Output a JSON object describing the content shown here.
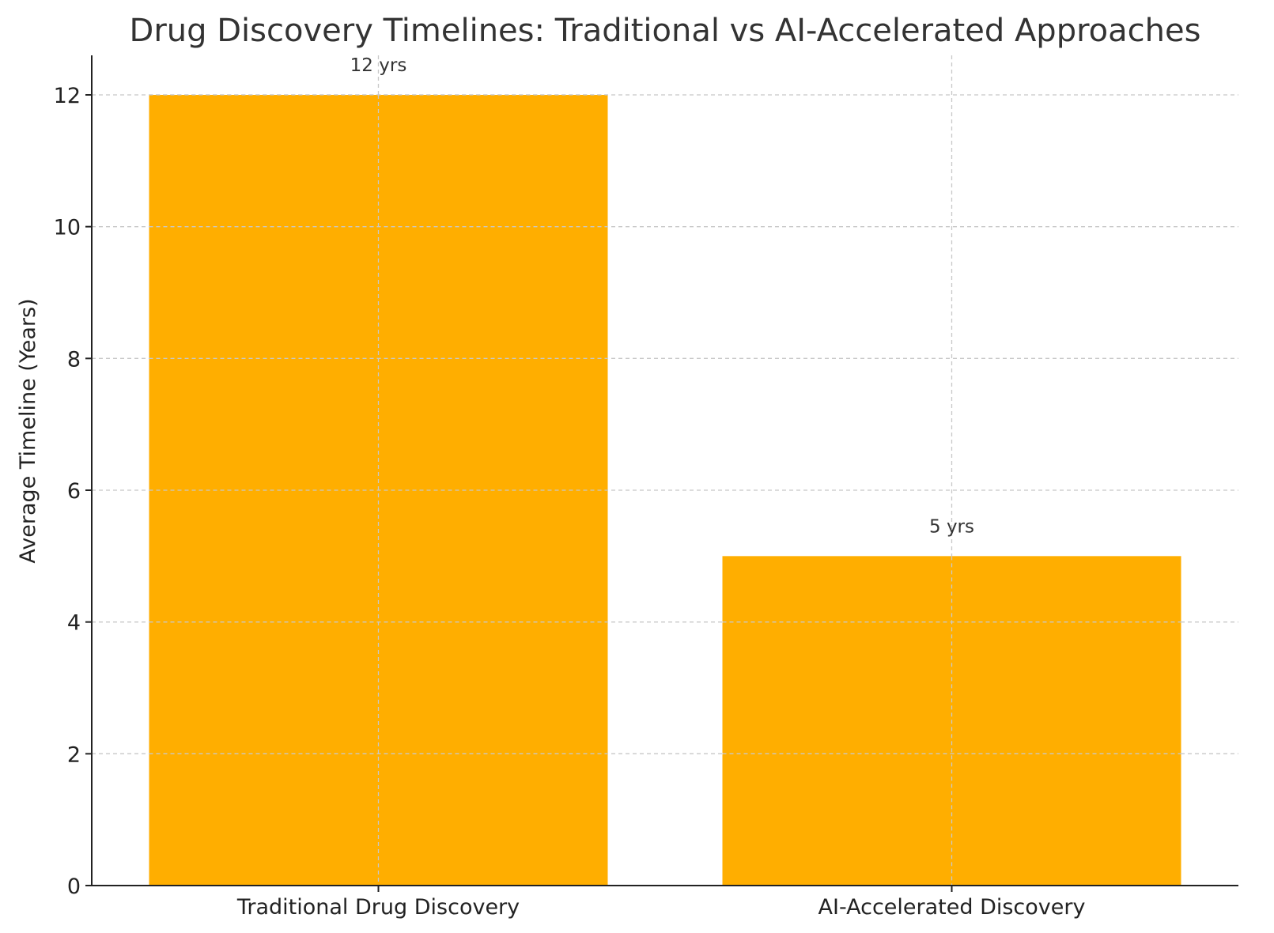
{
  "colors": {
    "bar": "#FFAE00",
    "text": "#333333",
    "grid": "#c8c8c8"
  },
  "chart_data": {
    "type": "bar",
    "title": "Drug Discovery Timelines: Traditional vs AI-Accelerated Approaches",
    "xlabel": "",
    "ylabel": "Average Timeline (Years)",
    "categories": [
      "Traditional Drug Discovery",
      "AI-Accelerated Discovery"
    ],
    "values": [
      12,
      5
    ],
    "data_labels": [
      "12 yrs",
      "5 yrs"
    ],
    "ylim": [
      0,
      12.6
    ],
    "yticks": [
      0,
      2,
      4,
      6,
      8,
      10,
      12
    ],
    "ytick_labels": [
      "0",
      "2",
      "4",
      "6",
      "8",
      "10",
      "12"
    ],
    "grid": true,
    "legend": false
  }
}
